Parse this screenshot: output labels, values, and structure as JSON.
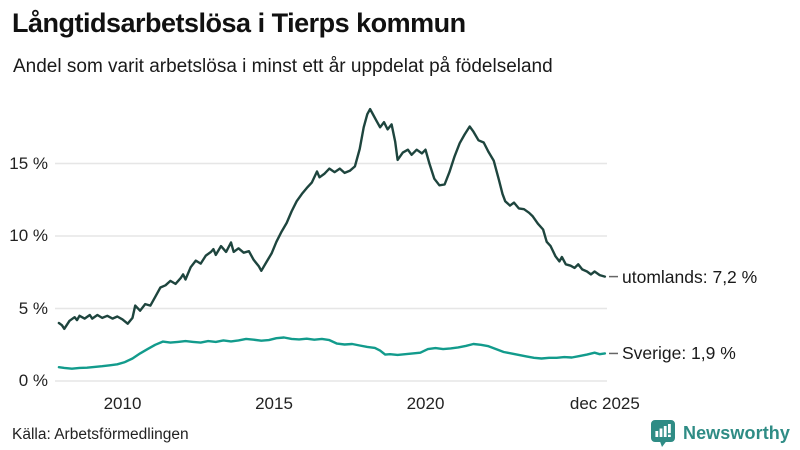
{
  "header": {
    "title": "Långtidsarbetslösa i Tierps kommun",
    "subtitle": "Andel som varit arbetslösa i minst ett år uppdelat på födelseland"
  },
  "footer": {
    "source": "Källa: Arbetsförmedlingen",
    "brand": "Newsworthy"
  },
  "colors": {
    "utomlands_line": "#1e453e",
    "sverige_line": "#129b8c",
    "grid": "#e6e6e6",
    "dash": "#666666",
    "brand": "#2f8c85",
    "text": "#1a1a1a"
  },
  "chart_data": {
    "type": "line",
    "title": "Långtidsarbetslösa i Tierps kommun",
    "subtitle": "Andel som varit arbetslösa i minst ett år uppdelat på födelseland",
    "grid": "horizontal",
    "legend_position": "end-of-line-labels",
    "x_axis": {
      "range": [
        2007.85,
        2025.95
      ],
      "ticks": [
        {
          "value": 2010,
          "label": "2010"
        },
        {
          "value": 2015,
          "label": "2015"
        },
        {
          "value": 2020,
          "label": "2020"
        },
        {
          "value": 2025.92,
          "label": "dec 2025"
        }
      ]
    },
    "y_axis": {
      "unit": "%",
      "range": [
        0,
        19
      ],
      "ticks": [
        {
          "value": 0,
          "label": "0 %"
        },
        {
          "value": 5,
          "label": "5 %"
        },
        {
          "value": 10,
          "label": "10 %"
        },
        {
          "value": 15,
          "label": "15 %"
        }
      ]
    },
    "series": [
      {
        "name": "utomlands",
        "end_label": "utomlands: 7,2 %",
        "last_value": 7.2,
        "color": "#1e453e",
        "points": [
          [
            2007.9,
            4.0
          ],
          [
            2008.0,
            3.85
          ],
          [
            2008.08,
            3.6
          ],
          [
            2008.25,
            4.15
          ],
          [
            2008.42,
            4.4
          ],
          [
            2008.5,
            4.2
          ],
          [
            2008.58,
            4.5
          ],
          [
            2008.75,
            4.3
          ],
          [
            2008.92,
            4.55
          ],
          [
            2009.0,
            4.3
          ],
          [
            2009.17,
            4.55
          ],
          [
            2009.33,
            4.35
          ],
          [
            2009.5,
            4.5
          ],
          [
            2009.67,
            4.3
          ],
          [
            2009.83,
            4.45
          ],
          [
            2010.0,
            4.25
          ],
          [
            2010.17,
            3.95
          ],
          [
            2010.33,
            4.35
          ],
          [
            2010.42,
            5.2
          ],
          [
            2010.58,
            4.85
          ],
          [
            2010.75,
            5.3
          ],
          [
            2010.92,
            5.2
          ],
          [
            2011.08,
            5.8
          ],
          [
            2011.25,
            6.45
          ],
          [
            2011.42,
            6.6
          ],
          [
            2011.58,
            6.9
          ],
          [
            2011.75,
            6.7
          ],
          [
            2011.92,
            7.1
          ],
          [
            2012.0,
            7.35
          ],
          [
            2012.08,
            7.0
          ],
          [
            2012.25,
            7.85
          ],
          [
            2012.42,
            8.3
          ],
          [
            2012.58,
            8.1
          ],
          [
            2012.75,
            8.65
          ],
          [
            2012.92,
            8.9
          ],
          [
            2013.0,
            9.1
          ],
          [
            2013.08,
            8.7
          ],
          [
            2013.25,
            9.3
          ],
          [
            2013.42,
            8.9
          ],
          [
            2013.58,
            9.55
          ],
          [
            2013.67,
            8.9
          ],
          [
            2013.83,
            9.15
          ],
          [
            2014.0,
            8.85
          ],
          [
            2014.17,
            8.95
          ],
          [
            2014.33,
            8.35
          ],
          [
            2014.5,
            7.9
          ],
          [
            2014.58,
            7.6
          ],
          [
            2014.75,
            8.2
          ],
          [
            2014.92,
            8.8
          ],
          [
            2015.08,
            9.6
          ],
          [
            2015.25,
            10.3
          ],
          [
            2015.42,
            10.9
          ],
          [
            2015.58,
            11.7
          ],
          [
            2015.75,
            12.4
          ],
          [
            2015.92,
            12.9
          ],
          [
            2016.08,
            13.3
          ],
          [
            2016.25,
            13.7
          ],
          [
            2016.42,
            14.45
          ],
          [
            2016.5,
            14.05
          ],
          [
            2016.67,
            14.3
          ],
          [
            2016.83,
            14.65
          ],
          [
            2017.0,
            14.4
          ],
          [
            2017.17,
            14.65
          ],
          [
            2017.33,
            14.35
          ],
          [
            2017.5,
            14.5
          ],
          [
            2017.67,
            14.8
          ],
          [
            2017.83,
            16.0
          ],
          [
            2017.96,
            17.5
          ],
          [
            2018.08,
            18.4
          ],
          [
            2018.17,
            18.75
          ],
          [
            2018.25,
            18.45
          ],
          [
            2018.38,
            17.95
          ],
          [
            2018.5,
            17.5
          ],
          [
            2018.63,
            17.85
          ],
          [
            2018.75,
            17.35
          ],
          [
            2018.88,
            17.7
          ],
          [
            2019.0,
            16.5
          ],
          [
            2019.08,
            15.25
          ],
          [
            2019.25,
            15.75
          ],
          [
            2019.42,
            15.95
          ],
          [
            2019.54,
            15.6
          ],
          [
            2019.71,
            15.95
          ],
          [
            2019.88,
            15.7
          ],
          [
            2020.0,
            15.95
          ],
          [
            2020.13,
            15.0
          ],
          [
            2020.29,
            13.95
          ],
          [
            2020.46,
            13.5
          ],
          [
            2020.63,
            13.55
          ],
          [
            2020.79,
            14.4
          ],
          [
            2020.96,
            15.5
          ],
          [
            2021.13,
            16.4
          ],
          [
            2021.29,
            17.0
          ],
          [
            2021.46,
            17.55
          ],
          [
            2021.58,
            17.2
          ],
          [
            2021.75,
            16.6
          ],
          [
            2021.92,
            16.45
          ],
          [
            2022.08,
            15.8
          ],
          [
            2022.25,
            15.2
          ],
          [
            2022.42,
            13.9
          ],
          [
            2022.54,
            12.9
          ],
          [
            2022.63,
            12.4
          ],
          [
            2022.79,
            12.1
          ],
          [
            2022.92,
            12.3
          ],
          [
            2023.08,
            11.9
          ],
          [
            2023.25,
            11.85
          ],
          [
            2023.42,
            11.6
          ],
          [
            2023.54,
            11.35
          ],
          [
            2023.71,
            10.85
          ],
          [
            2023.88,
            10.45
          ],
          [
            2024.0,
            9.6
          ],
          [
            2024.13,
            9.3
          ],
          [
            2024.29,
            8.6
          ],
          [
            2024.42,
            8.25
          ],
          [
            2024.5,
            8.55
          ],
          [
            2024.63,
            8.05
          ],
          [
            2024.79,
            7.95
          ],
          [
            2024.92,
            7.8
          ],
          [
            2025.04,
            8.05
          ],
          [
            2025.17,
            7.7
          ],
          [
            2025.33,
            7.55
          ],
          [
            2025.46,
            7.35
          ],
          [
            2025.58,
            7.55
          ],
          [
            2025.75,
            7.3
          ],
          [
            2025.92,
            7.2
          ]
        ]
      },
      {
        "name": "Sverige",
        "end_label": "Sverige: 1,9 %",
        "last_value": 1.9,
        "color": "#129b8c",
        "points": [
          [
            2007.9,
            0.95
          ],
          [
            2008.08,
            0.9
          ],
          [
            2008.33,
            0.85
          ],
          [
            2008.58,
            0.9
          ],
          [
            2008.83,
            0.92
          ],
          [
            2009.08,
            0.97
          ],
          [
            2009.33,
            1.02
          ],
          [
            2009.58,
            1.08
          ],
          [
            2009.83,
            1.15
          ],
          [
            2010.08,
            1.3
          ],
          [
            2010.33,
            1.55
          ],
          [
            2010.58,
            1.9
          ],
          [
            2010.83,
            2.2
          ],
          [
            2011.08,
            2.5
          ],
          [
            2011.33,
            2.72
          ],
          [
            2011.58,
            2.65
          ],
          [
            2011.83,
            2.7
          ],
          [
            2012.08,
            2.75
          ],
          [
            2012.33,
            2.7
          ],
          [
            2012.58,
            2.65
          ],
          [
            2012.83,
            2.75
          ],
          [
            2013.08,
            2.7
          ],
          [
            2013.33,
            2.8
          ],
          [
            2013.58,
            2.73
          ],
          [
            2013.83,
            2.8
          ],
          [
            2014.08,
            2.9
          ],
          [
            2014.33,
            2.85
          ],
          [
            2014.58,
            2.78
          ],
          [
            2014.83,
            2.82
          ],
          [
            2015.08,
            2.95
          ],
          [
            2015.33,
            3.0
          ],
          [
            2015.58,
            2.9
          ],
          [
            2015.83,
            2.87
          ],
          [
            2016.08,
            2.92
          ],
          [
            2016.33,
            2.85
          ],
          [
            2016.58,
            2.9
          ],
          [
            2016.83,
            2.82
          ],
          [
            2017.08,
            2.58
          ],
          [
            2017.33,
            2.52
          ],
          [
            2017.58,
            2.55
          ],
          [
            2017.83,
            2.45
          ],
          [
            2018.08,
            2.35
          ],
          [
            2018.33,
            2.28
          ],
          [
            2018.5,
            2.1
          ],
          [
            2018.67,
            1.82
          ],
          [
            2018.83,
            1.85
          ],
          [
            2019.08,
            1.8
          ],
          [
            2019.33,
            1.85
          ],
          [
            2019.58,
            1.9
          ],
          [
            2019.83,
            1.95
          ],
          [
            2020.08,
            2.2
          ],
          [
            2020.33,
            2.27
          ],
          [
            2020.58,
            2.2
          ],
          [
            2020.83,
            2.25
          ],
          [
            2021.08,
            2.32
          ],
          [
            2021.33,
            2.42
          ],
          [
            2021.58,
            2.55
          ],
          [
            2021.83,
            2.5
          ],
          [
            2022.08,
            2.4
          ],
          [
            2022.33,
            2.2
          ],
          [
            2022.58,
            2.0
          ],
          [
            2022.83,
            1.9
          ],
          [
            2023.08,
            1.8
          ],
          [
            2023.33,
            1.7
          ],
          [
            2023.58,
            1.6
          ],
          [
            2023.83,
            1.55
          ],
          [
            2024.08,
            1.6
          ],
          [
            2024.33,
            1.6
          ],
          [
            2024.58,
            1.65
          ],
          [
            2024.83,
            1.62
          ],
          [
            2025.08,
            1.72
          ],
          [
            2025.33,
            1.82
          ],
          [
            2025.58,
            1.95
          ],
          [
            2025.75,
            1.85
          ],
          [
            2025.92,
            1.9
          ]
        ]
      }
    ]
  }
}
